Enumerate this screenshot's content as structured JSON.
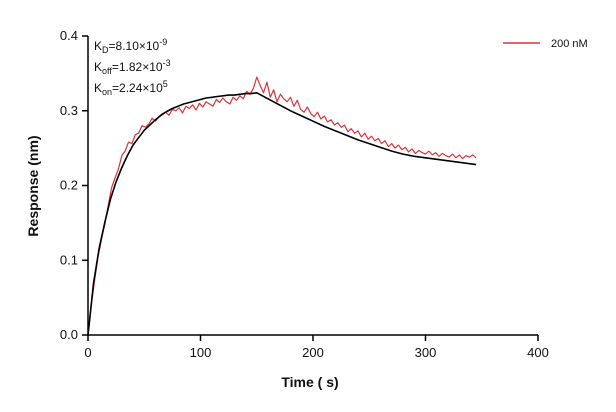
{
  "chart_data": {
    "type": "line",
    "xlabel": "Time ( s)",
    "ylabel": "Response (nm)",
    "xlim": [
      0,
      400
    ],
    "ylim": [
      0,
      0.4
    ],
    "xticks": [
      0,
      100,
      200,
      300,
      400
    ],
    "yticks": [
      0.0,
      0.1,
      0.2,
      0.3,
      0.4
    ],
    "xtick_labels": [
      "0",
      "100",
      "200",
      "300",
      "400"
    ],
    "ytick_labels": [
      "0.0",
      "0.1",
      "0.2",
      "0.3",
      "0.4"
    ],
    "grid": false,
    "legend_position": "top-right",
    "annotations": [
      {
        "base": "K",
        "sub": "D",
        "value": "=8.10×10",
        "exp": "-9"
      },
      {
        "base": "K",
        "sub": "off",
        "value": "=1.82×10",
        "exp": "-3"
      },
      {
        "base": "K",
        "sub": "on",
        "value": "=2.24×10",
        "exp": "5"
      }
    ],
    "series": [
      {
        "name": "200 nM",
        "color": "#d9343a",
        "x": [
          0,
          3,
          6,
          9,
          12,
          15,
          18,
          21,
          24,
          27,
          30,
          33,
          36,
          39,
          42,
          45,
          48,
          51,
          54,
          57,
          60,
          63,
          66,
          69,
          72,
          75,
          78,
          81,
          84,
          87,
          90,
          93,
          96,
          99,
          102,
          105,
          108,
          111,
          114,
          117,
          120,
          123,
          126,
          129,
          132,
          135,
          138,
          141,
          144,
          147,
          150,
          153,
          156,
          159,
          162,
          165,
          168,
          171,
          174,
          177,
          180,
          183,
          186,
          189,
          192,
          195,
          198,
          201,
          204,
          207,
          210,
          213,
          216,
          219,
          222,
          225,
          228,
          231,
          234,
          237,
          240,
          243,
          246,
          249,
          252,
          255,
          258,
          261,
          264,
          267,
          270,
          273,
          276,
          279,
          282,
          285,
          288,
          291,
          294,
          297,
          300,
          303,
          306,
          309,
          312,
          315,
          318,
          321,
          324,
          327,
          330,
          333,
          336,
          339,
          342,
          345
        ],
        "y": [
          0.0,
          0.041,
          0.075,
          0.105,
          0.128,
          0.149,
          0.174,
          0.197,
          0.21,
          0.222,
          0.24,
          0.246,
          0.258,
          0.256,
          0.268,
          0.27,
          0.28,
          0.278,
          0.282,
          0.29,
          0.286,
          0.292,
          0.296,
          0.298,
          0.294,
          0.302,
          0.3,
          0.304,
          0.297,
          0.306,
          0.303,
          0.308,
          0.301,
          0.31,
          0.305,
          0.312,
          0.309,
          0.306,
          0.315,
          0.311,
          0.317,
          0.312,
          0.309,
          0.318,
          0.314,
          0.32,
          0.316,
          0.326,
          0.322,
          0.33,
          0.345,
          0.334,
          0.324,
          0.338,
          0.318,
          0.328,
          0.312,
          0.322,
          0.316,
          0.312,
          0.318,
          0.306,
          0.314,
          0.302,
          0.298,
          0.305,
          0.296,
          0.292,
          0.298,
          0.289,
          0.293,
          0.285,
          0.288,
          0.281,
          0.284,
          0.278,
          0.281,
          0.272,
          0.276,
          0.27,
          0.273,
          0.265,
          0.27,
          0.262,
          0.266,
          0.26,
          0.263,
          0.256,
          0.26,
          0.252,
          0.256,
          0.25,
          0.254,
          0.248,
          0.251,
          0.245,
          0.249,
          0.243,
          0.247,
          0.244,
          0.242,
          0.246,
          0.241,
          0.244,
          0.239,
          0.243,
          0.24,
          0.238,
          0.242,
          0.237,
          0.241,
          0.236,
          0.24,
          0.238,
          0.241,
          0.237
        ]
      },
      {
        "name": "",
        "color": "#000000",
        "x": [
          0,
          5,
          10,
          15,
          20,
          25,
          30,
          35,
          40,
          45,
          50,
          55,
          60,
          65,
          70,
          75,
          80,
          85,
          90,
          95,
          100,
          105,
          110,
          115,
          120,
          125,
          130,
          135,
          140,
          145,
          150,
          160,
          170,
          180,
          190,
          200,
          210,
          220,
          230,
          240,
          250,
          260,
          270,
          280,
          290,
          300,
          310,
          320,
          330,
          340,
          345
        ],
        "y": [
          0.0,
          0.07,
          0.117,
          0.151,
          0.182,
          0.205,
          0.224,
          0.24,
          0.254,
          0.264,
          0.274,
          0.281,
          0.288,
          0.294,
          0.299,
          0.303,
          0.306,
          0.309,
          0.311,
          0.313,
          0.315,
          0.317,
          0.318,
          0.319,
          0.32,
          0.321,
          0.321,
          0.322,
          0.323,
          0.323,
          0.324,
          0.316,
          0.308,
          0.3,
          0.293,
          0.286,
          0.279,
          0.273,
          0.267,
          0.261,
          0.256,
          0.251,
          0.246,
          0.242,
          0.239,
          0.237,
          0.235,
          0.233,
          0.231,
          0.229,
          0.228
        ]
      }
    ]
  }
}
